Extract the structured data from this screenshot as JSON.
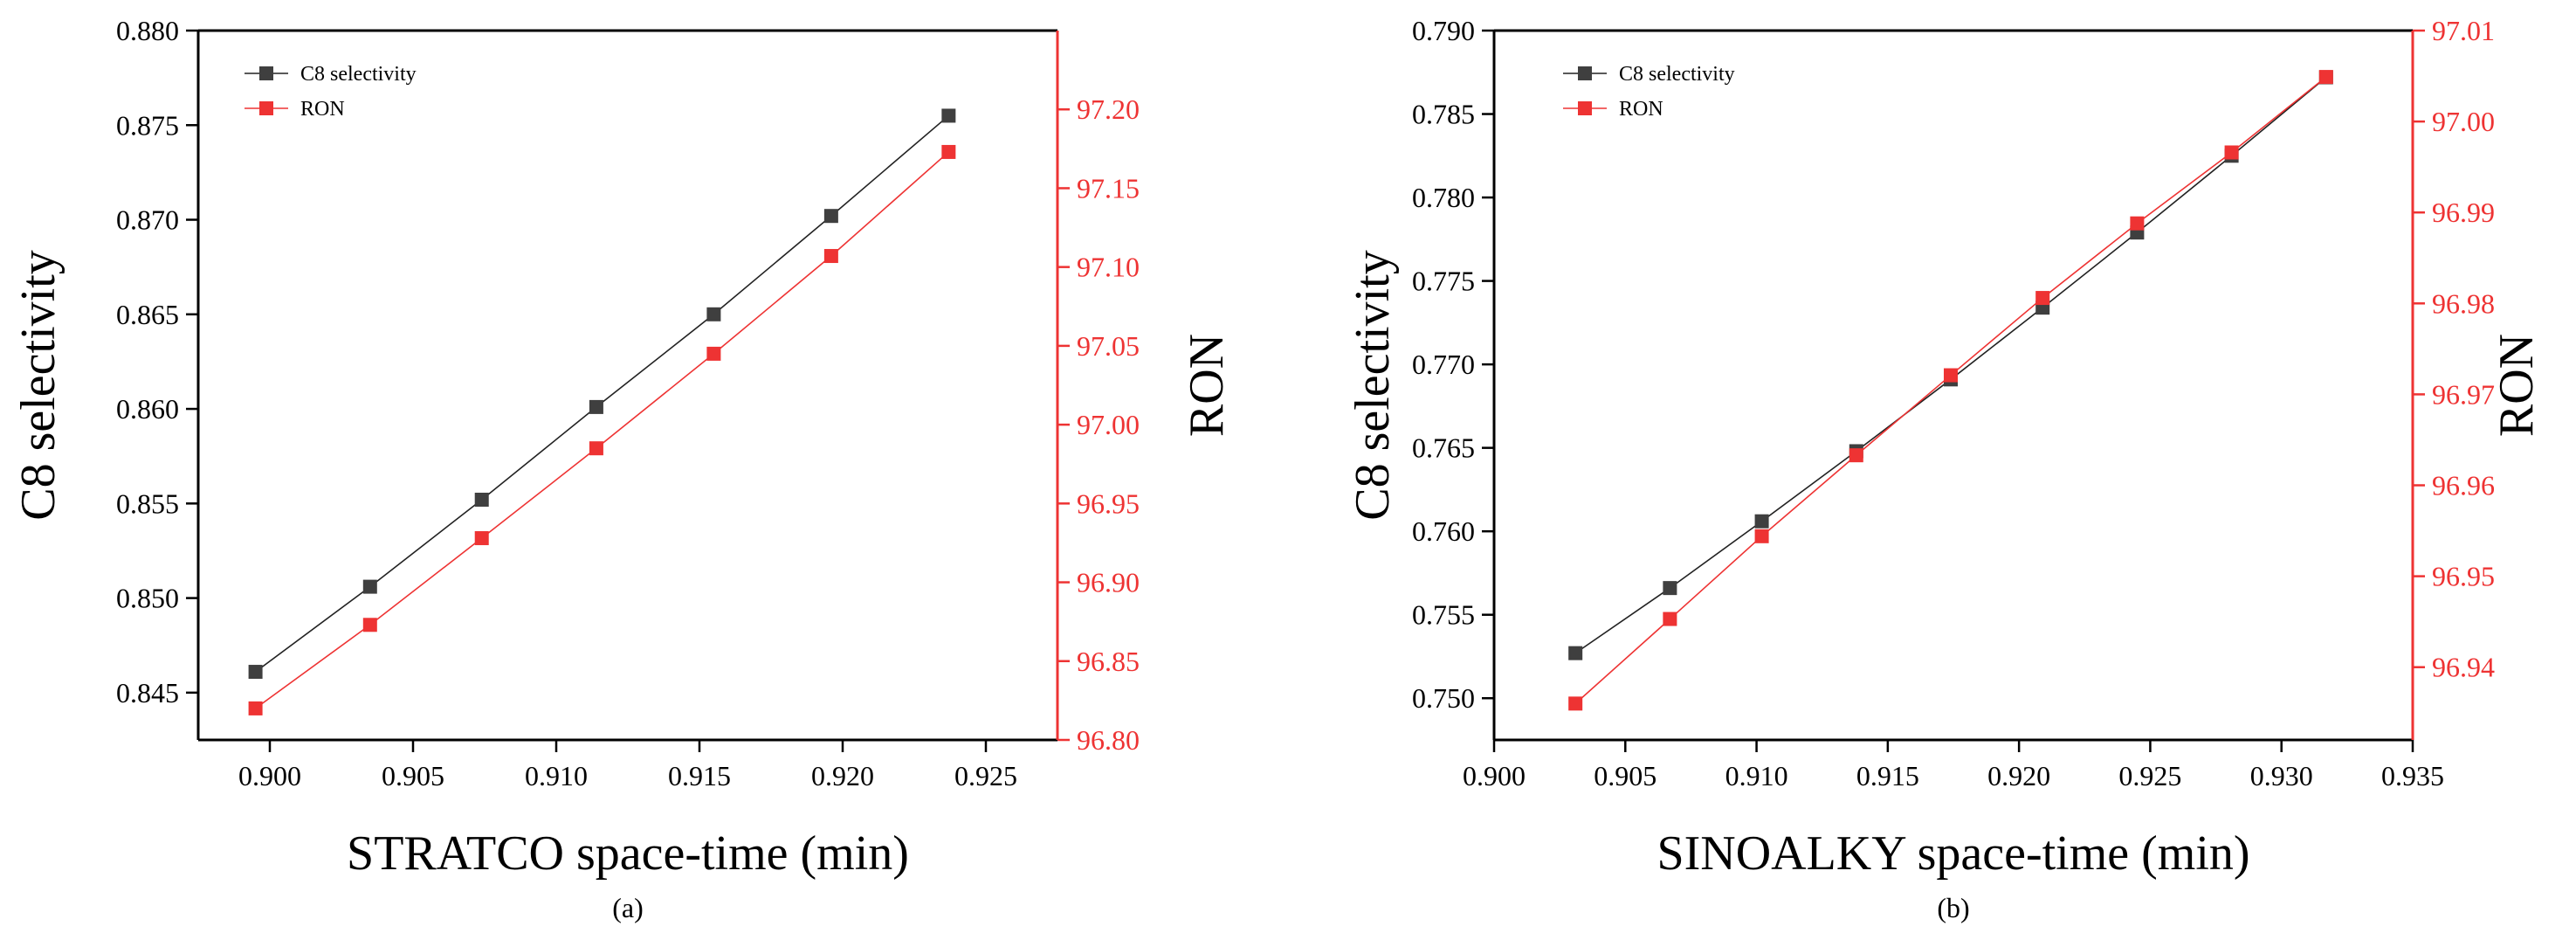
{
  "colors": {
    "black": "#000000",
    "left_series": "#3f3f3f",
    "right_series": "#ee3333",
    "right_axis": "#ee3333",
    "line_black": "#222222"
  },
  "chart_data": [
    {
      "type": "line",
      "panel_label": "(a)",
      "xlabel": "STRATCO space-time (min)",
      "ylabel_left": "C8 selectivity",
      "ylabel_right": "RON",
      "xlim": [
        0.8975,
        0.9275
      ],
      "xticks": [
        0.9,
        0.905,
        0.91,
        0.915,
        0.92,
        0.925
      ],
      "xtick_labels": [
        "0.900",
        "0.905",
        "0.910",
        "0.915",
        "0.920",
        "0.925"
      ],
      "ylim_left": [
        0.8425,
        0.88
      ],
      "yticks_left": [
        0.845,
        0.85,
        0.855,
        0.86,
        0.865,
        0.87,
        0.875,
        0.88
      ],
      "ytick_labels_left": [
        "0.845",
        "0.850",
        "0.855",
        "0.860",
        "0.865",
        "0.870",
        "0.875",
        "0.880"
      ],
      "ylim_right": [
        96.8,
        97.25
      ],
      "yticks_right": [
        96.8,
        96.85,
        96.9,
        96.95,
        97.0,
        97.05,
        97.1,
        97.15,
        97.2
      ],
      "ytick_labels_right": [
        "96.80",
        "96.85",
        "96.90",
        "96.95",
        "97.00",
        "97.05",
        "97.10",
        "97.15",
        "97.20"
      ],
      "x": [
        0.8995,
        0.9035,
        0.9074,
        0.9114,
        0.9155,
        0.9196,
        0.9237
      ],
      "series": [
        {
          "name": "C8 selectivity",
          "axis": "left",
          "values": [
            0.8461,
            0.8506,
            0.8552,
            0.8601,
            0.865,
            0.8702,
            0.8755
          ]
        },
        {
          "name": "RON",
          "axis": "right",
          "values": [
            96.82,
            96.873,
            96.928,
            96.985,
            97.045,
            97.107,
            97.173
          ]
        }
      ],
      "legend": [
        "C8 selectivity",
        "RON"
      ],
      "legend_position": "top-left"
    },
    {
      "type": "line",
      "panel_label": "(b)",
      "xlabel": "SINOALKY space-time (min)",
      "ylabel_left": "C8 selectivity",
      "ylabel_right": "RON",
      "xlim": [
        0.9,
        0.935
      ],
      "xticks": [
        0.9,
        0.905,
        0.91,
        0.915,
        0.92,
        0.925,
        0.93,
        0.935
      ],
      "xtick_labels": [
        "0.900",
        "0.905",
        "0.910",
        "0.915",
        "0.920",
        "0.925",
        "0.930",
        "0.935"
      ],
      "ylim_left": [
        0.7475,
        0.79
      ],
      "yticks_left": [
        0.75,
        0.755,
        0.76,
        0.765,
        0.77,
        0.775,
        0.78,
        0.785,
        0.79
      ],
      "ytick_labels_left": [
        "0.750",
        "0.755",
        "0.760",
        "0.765",
        "0.770",
        "0.775",
        "0.780",
        "0.785",
        "0.790"
      ],
      "ylim_right": [
        96.932,
        97.01
      ],
      "yticks_right": [
        96.94,
        96.95,
        96.96,
        96.97,
        96.98,
        96.99,
        97.0,
        97.01
      ],
      "ytick_labels_right": [
        "96.94",
        "96.95",
        "96.96",
        "96.97",
        "96.98",
        "96.99",
        "97.00",
        "97.01"
      ],
      "x": [
        0.9031,
        0.9067,
        0.9102,
        0.9138,
        0.9174,
        0.9209,
        0.9245,
        0.9281,
        0.9317
      ],
      "series": [
        {
          "name": "C8 selectivity",
          "axis": "left",
          "values": [
            0.7527,
            0.7566,
            0.7606,
            0.7648,
            0.7691,
            0.7734,
            0.7779,
            0.7825,
            0.7872
          ]
        },
        {
          "name": "RON",
          "axis": "right",
          "values": [
            96.936,
            96.9453,
            96.9544,
            96.9633,
            96.9721,
            96.9806,
            96.9888,
            96.9966,
            97.0049
          ]
        }
      ],
      "legend": [
        "C8 selectivity",
        "RON"
      ],
      "legend_position": "top-left"
    }
  ]
}
